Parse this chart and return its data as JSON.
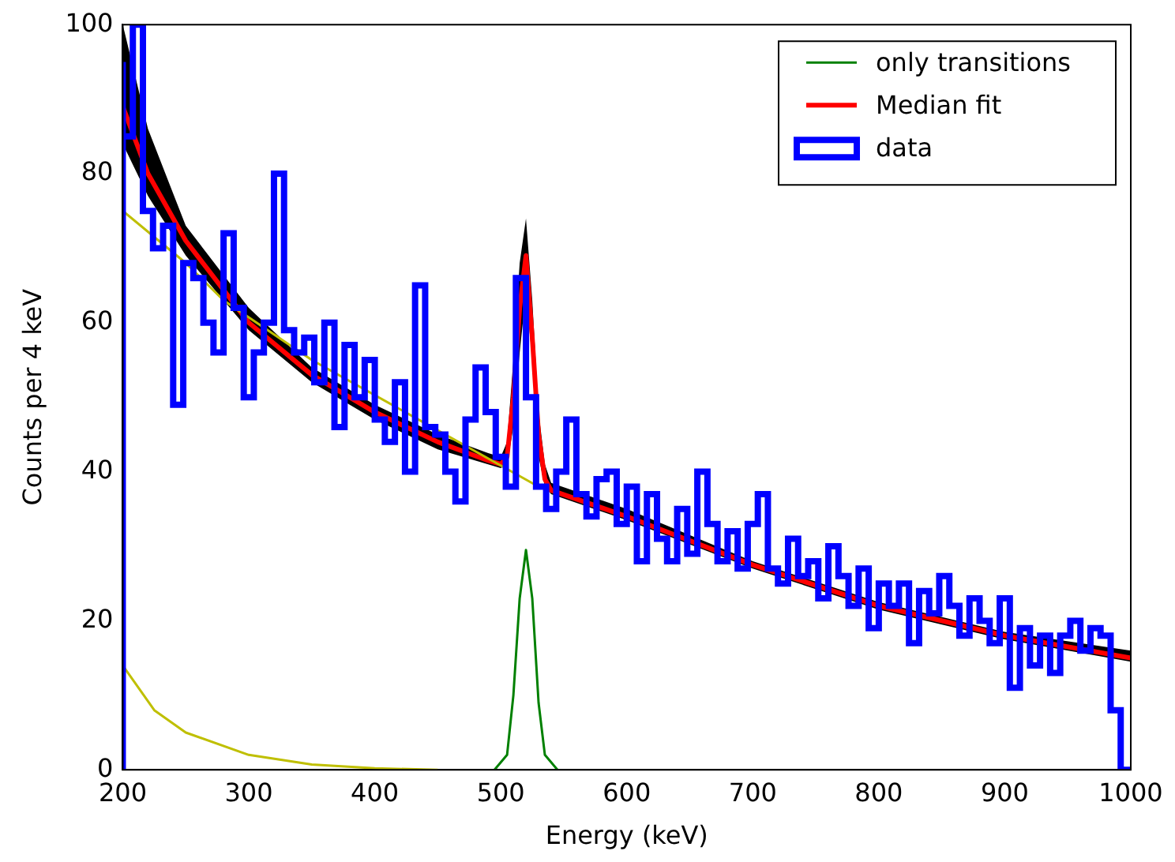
{
  "chart_data": {
    "type": "line",
    "xlabel": "Energy (keV)",
    "ylabel": "Counts per 4 keV",
    "xlim": [
      200,
      1000
    ],
    "ylim": [
      0,
      100
    ],
    "xticks": [
      200,
      300,
      400,
      500,
      600,
      700,
      800,
      900,
      1000
    ],
    "yticks": [
      0,
      20,
      40,
      60,
      80,
      100
    ],
    "legend": "top right",
    "series": [
      {
        "name": "data",
        "type": "step",
        "color": "#0000ff",
        "x": [
          200,
          200,
          208,
          216,
          224,
          232,
          240,
          248,
          256,
          264,
          272,
          280,
          288,
          296,
          304,
          312,
          320,
          328,
          336,
          344,
          352,
          360,
          368,
          376,
          384,
          392,
          400,
          408,
          416,
          424,
          432,
          440,
          448,
          456,
          464,
          472,
          480,
          488,
          496,
          504,
          512,
          520,
          528,
          536,
          544,
          552,
          560,
          568,
          576,
          584,
          592,
          600,
          608,
          616,
          624,
          632,
          640,
          648,
          656,
          664,
          672,
          680,
          688,
          696,
          704,
          712,
          720,
          728,
          736,
          744,
          752,
          760,
          768,
          776,
          784,
          792,
          800,
          808,
          816,
          824,
          832,
          840,
          848,
          856,
          864,
          872,
          880,
          888,
          896,
          904,
          912,
          920,
          928,
          936,
          944,
          952,
          960,
          968,
          976,
          984,
          992,
          1000
        ],
        "values": [
          0,
          95,
          85,
          100,
          75,
          70,
          73,
          49,
          68,
          66,
          60,
          56,
          72,
          62,
          50,
          56,
          60,
          80,
          59,
          56,
          58,
          52,
          60,
          46,
          57,
          50,
          55,
          47,
          44,
          52,
          40,
          65,
          46,
          45,
          40,
          36,
          47,
          54,
          48,
          42,
          38,
          66,
          50,
          38,
          35,
          40,
          47,
          37,
          34,
          39,
          40,
          33,
          38,
          28,
          37,
          31,
          28,
          35,
          29,
          40,
          33,
          28,
          32,
          27,
          33,
          37,
          27,
          25,
          31,
          26,
          28,
          23,
          30,
          26,
          22,
          27,
          19,
          25,
          22,
          25,
          17,
          24,
          21,
          26,
          22,
          18,
          23,
          20,
          17,
          23,
          11,
          19,
          14,
          18,
          13,
          18,
          20,
          16,
          19,
          18,
          8,
          0
        ]
      },
      {
        "type": "line",
        "color": "#bfbf00",
        "x": [
          200,
          250,
          280,
          350,
          530
        ],
        "values": [
          75,
          68,
          63,
          55,
          38
        ]
      },
      {
        "type": "line",
        "color": "#bfbf00",
        "x": [
          200,
          225,
          250,
          300,
          350,
          400,
          450
        ],
        "values": [
          14,
          8,
          5,
          2,
          0.7,
          0.2,
          0
        ]
      },
      {
        "name": "Median fit",
        "type": "line",
        "color": "#ff0000",
        "x": [
          200,
          220,
          250,
          300,
          350,
          400,
          450,
          490,
          500,
          505,
          510,
          515,
          520,
          525,
          530,
          535,
          540,
          600,
          700,
          800,
          900,
          1000
        ],
        "values": [
          89,
          80,
          71,
          60,
          53,
          48,
          44,
          41.5,
          41,
          42,
          50,
          62,
          69,
          58,
          45,
          39,
          37.5,
          34,
          27.5,
          22,
          18,
          15
        ],
        "lower": [
          84,
          77,
          69,
          59,
          52,
          47,
          43,
          41,
          40.5,
          41,
          46,
          56,
          64,
          55,
          42,
          38,
          37,
          33.5,
          27,
          21.5,
          17.5,
          14.5
        ],
        "upper": [
          100,
          86,
          73,
          62,
          54,
          49,
          45,
          42.5,
          42,
          44,
          55,
          68,
          74,
          63,
          48,
          41,
          38.5,
          35,
          28,
          22.5,
          18.5,
          16
        ]
      },
      {
        "name": "only transitions",
        "type": "line",
        "color": "#008000",
        "x": [
          495,
          505,
          510,
          515,
          520,
          525,
          530,
          535,
          545
        ],
        "values": [
          0,
          2,
          10,
          23,
          29.5,
          23,
          9,
          2,
          0
        ]
      }
    ]
  }
}
